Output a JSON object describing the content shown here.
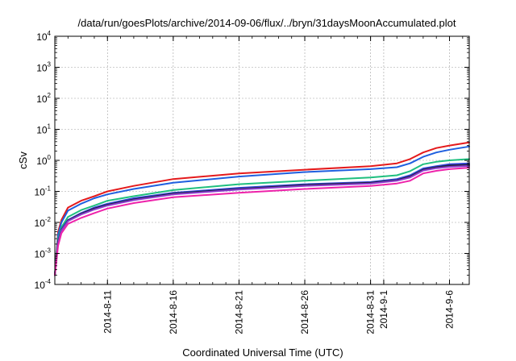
{
  "chart_data": {
    "type": "line",
    "title": "/data/run/goesPlots/archive/2014-09-06/flux/../bryn/31daysMoonAccumulated.plot",
    "xlabel": "Coordinated Universal Time (UTC)",
    "ylabel": "cSv",
    "y_scale": "log",
    "ylim": [
      0.0001,
      10000
    ],
    "xlim": [
      "2014-08-07T00:00",
      "2014-09-07T12:00"
    ],
    "grid": true,
    "y_ticks": [
      {
        "value": 0.0001,
        "base": "10",
        "exp": "-4"
      },
      {
        "value": 0.001,
        "base": "10",
        "exp": "-3"
      },
      {
        "value": 0.01,
        "base": "10",
        "exp": "-2"
      },
      {
        "value": 0.1,
        "base": "10",
        "exp": "-1"
      },
      {
        "value": 1,
        "base": "10",
        "exp": "0"
      },
      {
        "value": 10,
        "base": "10",
        "exp": "1"
      },
      {
        "value": 100,
        "base": "10",
        "exp": "2"
      },
      {
        "value": 1000,
        "base": "10",
        "exp": "3"
      },
      {
        "value": 10000,
        "base": "10",
        "exp": "4"
      }
    ],
    "x_ticks": [
      {
        "value": "2014-08-11",
        "label": "2014-8-11"
      },
      {
        "value": "2014-08-16",
        "label": "2014-8-16"
      },
      {
        "value": "2014-08-21",
        "label": "2014-8-21"
      },
      {
        "value": "2014-08-26",
        "label": "2014-8-26"
      },
      {
        "value": "2014-08-31",
        "label": "2014-8-31"
      },
      {
        "value": "2014-09-01",
        "label": "2014-9-1"
      },
      {
        "value": "2014-09-06",
        "label": "2014-9-6"
      }
    ],
    "x": [
      "2014-08-07T00:00",
      "2014-08-07T06:00",
      "2014-08-07T12:00",
      "2014-08-08T00:00",
      "2014-08-09T00:00",
      "2014-08-10T00:00",
      "2014-08-11T00:00",
      "2014-08-13T00:00",
      "2014-08-16T00:00",
      "2014-08-21T00:00",
      "2014-08-26T00:00",
      "2014-08-31T00:00",
      "2014-09-02T00:00",
      "2014-09-03T00:00",
      "2014-09-04T00:00",
      "2014-09-05T00:00",
      "2014-09-06T00:00",
      "2014-09-07T12:00"
    ],
    "series": [
      {
        "color": "#e41a1c",
        "values": [
          0.0002,
          0.005,
          0.012,
          0.03,
          0.05,
          0.07,
          0.1,
          0.15,
          0.25,
          0.38,
          0.5,
          0.65,
          0.8,
          1.1,
          1.8,
          2.5,
          3.0,
          3.8
        ]
      },
      {
        "color": "#1f5fdf",
        "values": [
          0.0002,
          0.004,
          0.01,
          0.024,
          0.04,
          0.06,
          0.08,
          0.12,
          0.19,
          0.3,
          0.42,
          0.52,
          0.6,
          0.8,
          1.3,
          1.8,
          2.2,
          2.8
        ]
      },
      {
        "color": "#1fbf7f",
        "values": [
          0.0002,
          0.003,
          0.007,
          0.015,
          0.025,
          0.035,
          0.05,
          0.07,
          0.11,
          0.17,
          0.22,
          0.28,
          0.33,
          0.45,
          0.75,
          0.9,
          1.0,
          1.1
        ]
      },
      {
        "color": "#3344dd",
        "values": [
          0.0002,
          0.0025,
          0.006,
          0.012,
          0.02,
          0.03,
          0.04,
          0.06,
          0.09,
          0.13,
          0.17,
          0.2,
          0.25,
          0.33,
          0.55,
          0.65,
          0.75,
          0.8
        ]
      },
      {
        "color": "#22223a",
        "values": [
          0.0002,
          0.0024,
          0.0058,
          0.0115,
          0.019,
          0.028,
          0.037,
          0.055,
          0.085,
          0.12,
          0.16,
          0.19,
          0.23,
          0.3,
          0.5,
          0.6,
          0.68,
          0.72
        ]
      },
      {
        "color": "#8a3ccf",
        "values": [
          0.0002,
          0.0022,
          0.0055,
          0.011,
          0.018,
          0.026,
          0.035,
          0.052,
          0.08,
          0.115,
          0.15,
          0.18,
          0.22,
          0.28,
          0.47,
          0.56,
          0.62,
          0.66
        ]
      },
      {
        "color": "#ee22aa",
        "values": [
          0.0002,
          0.0018,
          0.0045,
          0.009,
          0.014,
          0.02,
          0.028,
          0.042,
          0.065,
          0.09,
          0.12,
          0.15,
          0.18,
          0.22,
          0.38,
          0.46,
          0.52,
          0.58
        ]
      }
    ]
  }
}
